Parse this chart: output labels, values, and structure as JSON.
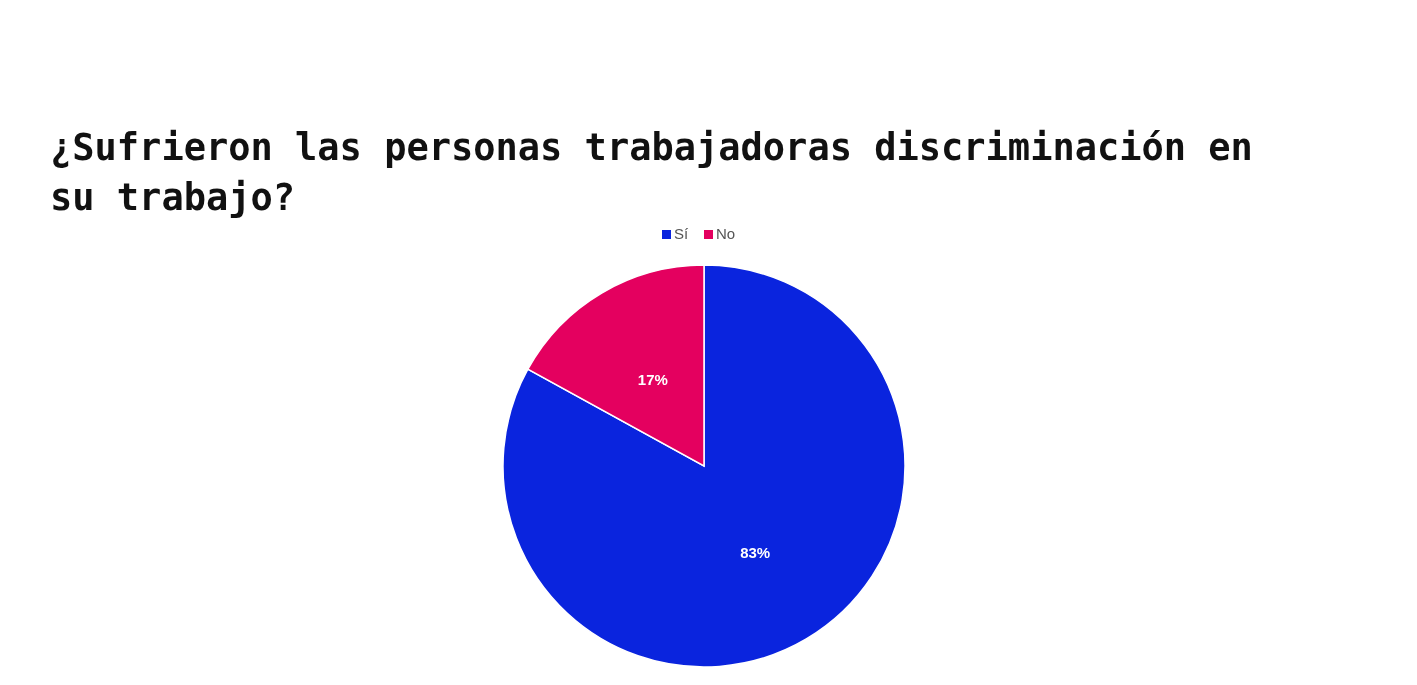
{
  "chart_data": {
    "type": "pie",
    "title": "¿Sufrieron las personas trabajadoras discriminación en su trabajo?",
    "categories": [
      "Sí",
      "No"
    ],
    "values": [
      83,
      17
    ],
    "colors": [
      "#0a24de",
      "#e4005f"
    ],
    "value_labels": [
      "83%",
      "17%"
    ],
    "legend": "top"
  }
}
